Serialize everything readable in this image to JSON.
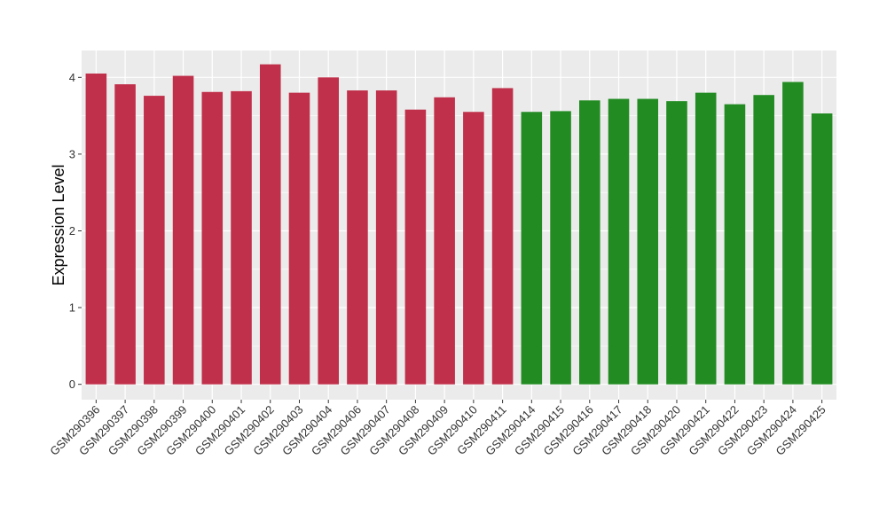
{
  "chart_data": {
    "type": "bar",
    "title": "",
    "xlabel": "",
    "ylabel": "Expression Level",
    "ylim": [
      -0.2,
      4.35
    ],
    "yticks": [
      0,
      1,
      2,
      3,
      4
    ],
    "grid": true,
    "legend": "none",
    "panel_background": "#EBEBEB",
    "categories": [
      "GSM290396",
      "GSM290397",
      "GSM290398",
      "GSM290399",
      "GSM290400",
      "GSM290401",
      "GSM290402",
      "GSM290403",
      "GSM290404",
      "GSM290406",
      "GSM290407",
      "GSM290408",
      "GSM290409",
      "GSM290410",
      "GSM290411",
      "GSM290414",
      "GSM290415",
      "GSM290416",
      "GSM290417",
      "GSM290418",
      "GSM290420",
      "GSM290421",
      "GSM290422",
      "GSM290423",
      "GSM290424",
      "GSM290425"
    ],
    "values": [
      4.05,
      3.91,
      3.76,
      4.02,
      3.81,
      3.82,
      4.17,
      3.8,
      4.0,
      3.83,
      3.83,
      3.58,
      3.74,
      3.55,
      3.86,
      3.55,
      3.56,
      3.7,
      3.72,
      3.72,
      3.69,
      3.8,
      3.65,
      3.77,
      3.94,
      3.53
    ],
    "bar_colors": [
      "#C0304A",
      "#C0304A",
      "#C0304A",
      "#C0304A",
      "#C0304A",
      "#C0304A",
      "#C0304A",
      "#C0304A",
      "#C0304A",
      "#C0304A",
      "#C0304A",
      "#C0304A",
      "#C0304A",
      "#C0304A",
      "#C0304A",
      "#228B22",
      "#228B22",
      "#228B22",
      "#228B22",
      "#228B22",
      "#228B22",
      "#228B22",
      "#228B22",
      "#228B22",
      "#228B22",
      "#228B22"
    ]
  }
}
